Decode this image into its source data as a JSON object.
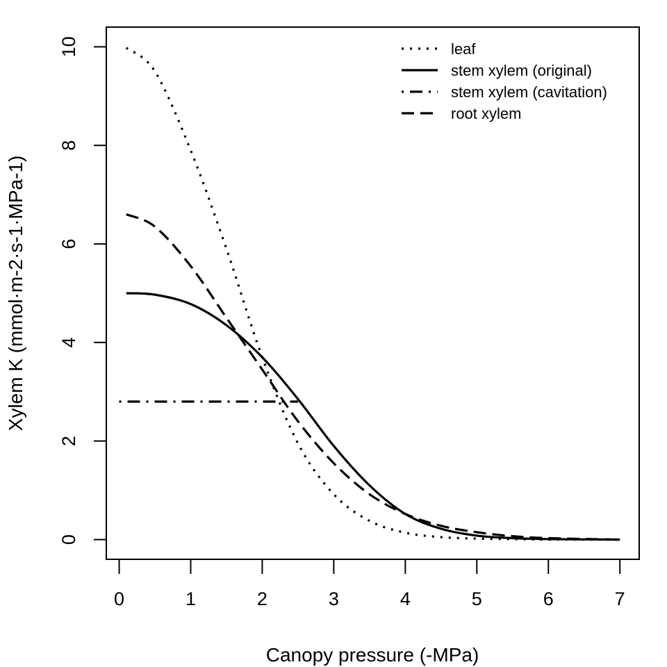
{
  "chart_data": {
    "type": "line",
    "xlabel": "Canopy pressure (-MPa)",
    "ylabel": "Xylem K (mmol·m-2·s-1·MPa-1)",
    "xlim": [
      -0.18,
      7.27
    ],
    "ylim": [
      -0.4,
      10.4
    ],
    "xticks": [
      0,
      1,
      2,
      3,
      4,
      5,
      6,
      7
    ],
    "yticks": [
      0,
      2,
      4,
      6,
      8,
      10
    ],
    "grid": false,
    "legend_position": "top-right",
    "series": [
      {
        "name": "leaf",
        "dash": "dotted",
        "x": [
          0.1,
          0.5,
          1.0,
          1.5,
          2.0,
          2.5,
          3.0,
          3.5,
          4.0,
          4.5,
          5.0,
          5.5,
          6.0,
          7.0
        ],
        "y": [
          9.98,
          9.5,
          7.9,
          5.9,
          3.7,
          1.95,
          0.92,
          0.38,
          0.14,
          0.05,
          0.02,
          0.01,
          0.0,
          0.0
        ]
      },
      {
        "name": "stem xylem (original)",
        "dash": "solid",
        "x": [
          0.1,
          0.5,
          1.0,
          1.5,
          2.0,
          2.5,
          3.0,
          3.5,
          4.0,
          4.5,
          5.0,
          5.5,
          6.0,
          7.0
        ],
        "y": [
          5.0,
          4.97,
          4.78,
          4.35,
          3.7,
          2.85,
          1.9,
          1.1,
          0.52,
          0.22,
          0.08,
          0.03,
          0.01,
          0.0
        ]
      },
      {
        "name": "stem xylem (cavitation)",
        "dash": "dotdash",
        "x": [
          0.0,
          2.5
        ],
        "y": [
          2.8,
          2.8
        ]
      },
      {
        "name": "root xylem",
        "dash": "dashed",
        "x": [
          0.1,
          0.5,
          1.0,
          1.5,
          2.0,
          2.5,
          3.0,
          3.5,
          4.0,
          4.5,
          5.0,
          5.5,
          6.0,
          7.0
        ],
        "y": [
          6.6,
          6.35,
          5.55,
          4.5,
          3.45,
          2.4,
          1.55,
          0.92,
          0.52,
          0.28,
          0.15,
          0.07,
          0.03,
          0.0
        ]
      }
    ]
  }
}
